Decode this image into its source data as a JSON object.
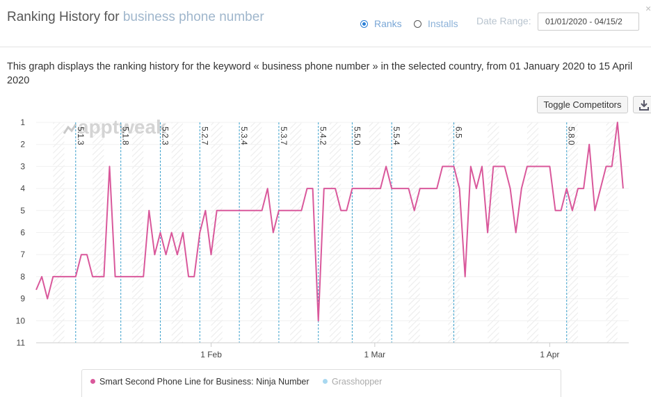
{
  "header": {
    "title_prefix": "Ranking History for ",
    "title_keyword": "business phone number",
    "radio_ranks": "Ranks",
    "radio_installs": "Installs",
    "date_range_label": "Date Range:",
    "date_range_value": "01/01/2020 - 04/15/2",
    "close_glyph": "×"
  },
  "description": "This graph displays the ranking history for the keyword « business phone number » in the selected country, from 01 January 2020 to 15 April 2020",
  "toolbar": {
    "toggle_competitors": "Toggle Competitors",
    "download_icon": "download-icon"
  },
  "watermark": "apptweak",
  "colors": {
    "series_primary": "#d9589b",
    "series_secondary": "#a8d8f0",
    "version_line": "#3aa0cc",
    "accent": "#2a7fd6"
  },
  "chart_data": {
    "type": "line",
    "title": "",
    "xlabel": "",
    "ylabel": "",
    "y_reversed": true,
    "ylim": [
      1,
      11
    ],
    "y_ticks": [
      "1",
      "2",
      "3",
      "4",
      "5",
      "6",
      "7",
      "8",
      "9",
      "10",
      "11"
    ],
    "x_start": "2020-01-01",
    "x_end": "2020-04-15",
    "x_ticks": [
      {
        "label": "1 Feb",
        "date": "2020-02-01"
      },
      {
        "label": "1 Mar",
        "date": "2020-03-01"
      },
      {
        "label": "1 Apr",
        "date": "2020-04-01"
      }
    ],
    "versions": [
      {
        "label": "5.1.3",
        "date": "2020-01-08"
      },
      {
        "label": "5.1.8",
        "date": "2020-01-16"
      },
      {
        "label": "5.2.3",
        "date": "2020-01-23"
      },
      {
        "label": "5.2.7",
        "date": "2020-01-30"
      },
      {
        "label": "5.3.4",
        "date": "2020-02-06"
      },
      {
        "label": "5.3.7",
        "date": "2020-02-13"
      },
      {
        "label": "5.4.2",
        "date": "2020-02-20"
      },
      {
        "label": "5.5.0",
        "date": "2020-02-26"
      },
      {
        "label": "5.5.4",
        "date": "2020-03-04"
      },
      {
        "label": "6.5",
        "date": "2020-03-15"
      },
      {
        "label": "5.8.0",
        "date": "2020-04-04"
      }
    ],
    "series": [
      {
        "name": "Smart Second Phone Line for Business: Ninja Number",
        "points": [
          [
            "2020-01-01",
            8.6
          ],
          [
            "2020-01-02",
            8
          ],
          [
            "2020-01-03",
            9
          ],
          [
            "2020-01-04",
            8
          ],
          [
            "2020-01-05",
            8
          ],
          [
            "2020-01-07",
            8
          ],
          [
            "2020-01-08",
            8
          ],
          [
            "2020-01-09",
            7
          ],
          [
            "2020-01-10",
            7
          ],
          [
            "2020-01-11",
            8
          ],
          [
            "2020-01-12",
            8
          ],
          [
            "2020-01-13",
            8
          ],
          [
            "2020-01-14",
            3
          ],
          [
            "2020-01-15",
            8
          ],
          [
            "2020-01-17",
            8
          ],
          [
            "2020-01-20",
            8
          ],
          [
            "2020-01-21",
            5
          ],
          [
            "2020-01-22",
            7
          ],
          [
            "2020-01-23",
            6
          ],
          [
            "2020-01-24",
            7
          ],
          [
            "2020-01-25",
            6
          ],
          [
            "2020-01-26",
            7
          ],
          [
            "2020-01-27",
            6
          ],
          [
            "2020-01-28",
            8
          ],
          [
            "2020-01-29",
            8
          ],
          [
            "2020-01-30",
            6
          ],
          [
            "2020-01-31",
            5
          ],
          [
            "2020-02-01",
            7
          ],
          [
            "2020-02-02",
            5
          ],
          [
            "2020-02-03",
            5
          ],
          [
            "2020-02-05",
            5
          ],
          [
            "2020-02-08",
            5
          ],
          [
            "2020-02-10",
            5
          ],
          [
            "2020-02-11",
            4
          ],
          [
            "2020-02-12",
            6
          ],
          [
            "2020-02-13",
            5
          ],
          [
            "2020-02-15",
            5
          ],
          [
            "2020-02-17",
            5
          ],
          [
            "2020-02-18",
            4
          ],
          [
            "2020-02-19",
            4
          ],
          [
            "2020-02-20",
            10
          ],
          [
            "2020-02-21",
            4
          ],
          [
            "2020-02-22",
            4
          ],
          [
            "2020-02-23",
            4
          ],
          [
            "2020-02-24",
            5
          ],
          [
            "2020-02-25",
            5
          ],
          [
            "2020-02-26",
            4
          ],
          [
            "2020-02-28",
            4
          ],
          [
            "2020-03-01",
            4
          ],
          [
            "2020-03-02",
            4
          ],
          [
            "2020-03-03",
            3
          ],
          [
            "2020-03-04",
            4
          ],
          [
            "2020-03-05",
            4
          ],
          [
            "2020-03-07",
            4
          ],
          [
            "2020-03-08",
            5
          ],
          [
            "2020-03-09",
            4
          ],
          [
            "2020-03-11",
            4
          ],
          [
            "2020-03-12",
            4
          ],
          [
            "2020-03-13",
            3
          ],
          [
            "2020-03-14",
            3
          ],
          [
            "2020-03-15",
            3
          ],
          [
            "2020-03-16",
            4
          ],
          [
            "2020-03-17",
            8
          ],
          [
            "2020-03-18",
            3
          ],
          [
            "2020-03-19",
            4
          ],
          [
            "2020-03-20",
            3
          ],
          [
            "2020-03-21",
            6
          ],
          [
            "2020-03-22",
            3
          ],
          [
            "2020-03-24",
            3
          ],
          [
            "2020-03-25",
            4
          ],
          [
            "2020-03-26",
            6
          ],
          [
            "2020-03-27",
            4
          ],
          [
            "2020-03-28",
            3
          ],
          [
            "2020-03-30",
            3
          ],
          [
            "2020-03-31",
            3
          ],
          [
            "2020-04-01",
            3
          ],
          [
            "2020-04-02",
            5
          ],
          [
            "2020-04-03",
            5
          ],
          [
            "2020-04-04",
            4
          ],
          [
            "2020-04-05",
            5
          ],
          [
            "2020-04-06",
            4
          ],
          [
            "2020-04-07",
            4
          ],
          [
            "2020-04-08",
            2
          ],
          [
            "2020-04-09",
            5
          ],
          [
            "2020-04-10",
            4
          ],
          [
            "2020-04-11",
            3
          ],
          [
            "2020-04-12",
            3
          ],
          [
            "2020-04-13",
            1
          ],
          [
            "2020-04-14",
            4
          ]
        ]
      },
      {
        "name": "Grasshopper",
        "points": []
      }
    ]
  }
}
